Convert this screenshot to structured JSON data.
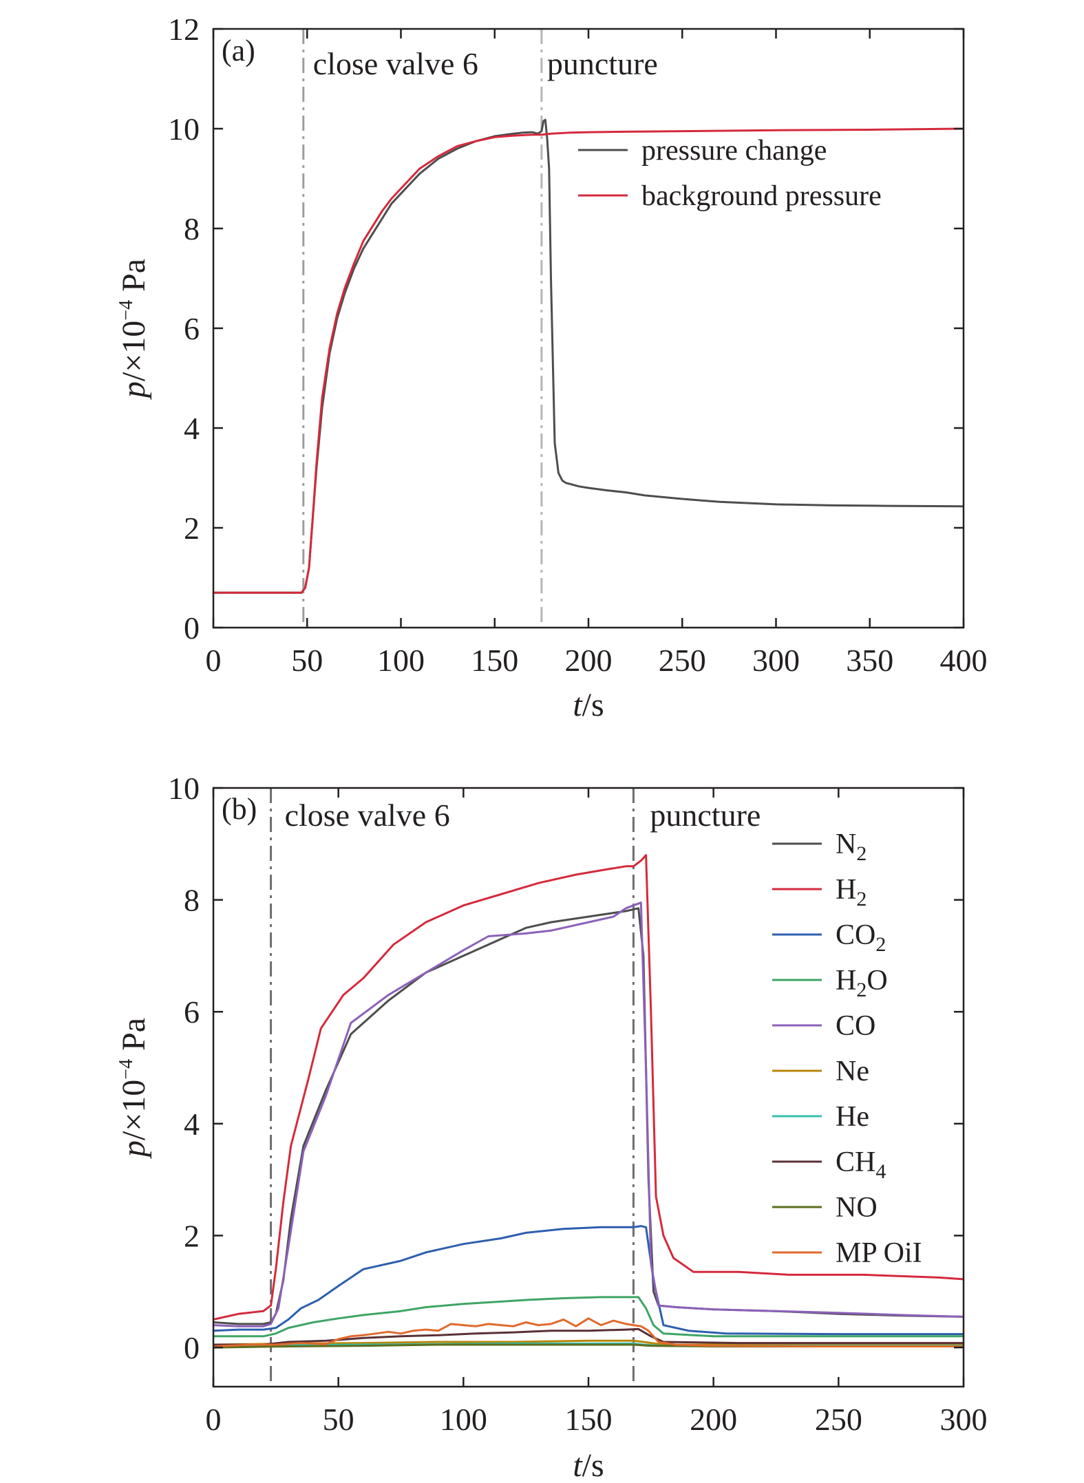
{
  "charts": [
    {
      "panel": "(a)",
      "chart_data": {
        "type": "line",
        "title": "",
        "xlabel": {
          "italic": "t",
          "unit": "/s"
        },
        "ylabel": {
          "italic": "p",
          "unit": "/×10",
          "exp": "−4",
          "suffix": " Pa"
        },
        "xlim": [
          0,
          400
        ],
        "ylim": [
          0,
          12
        ],
        "xticks": [
          0,
          50,
          100,
          150,
          200,
          250,
          300,
          350,
          400
        ],
        "yticks": [
          0,
          2,
          4,
          6,
          8,
          10,
          12
        ],
        "grid": false,
        "legend_position": "top-right",
        "vlines": [
          {
            "x": 48,
            "label": "close valve 6",
            "color": "#9d9d9d"
          },
          {
            "x": 175,
            "label": "puncture",
            "color": "#b5b5b5"
          }
        ],
        "series": [
          {
            "name": "pressure change",
            "color": "#4d4d4d",
            "x": [
              0,
              20,
              40,
              47,
              49,
              51,
              53,
              55,
              58,
              62,
              66,
              70,
              75,
              80,
              85,
              90,
              95,
              100,
              110,
              120,
              130,
              140,
              150,
              160,
              165,
              170,
              173,
              175,
              176,
              177,
              178,
              179,
              180,
              182,
              184,
              186,
              188,
              190,
              195,
              200,
              210,
              220,
              230,
              250,
              270,
              300,
              330,
              360,
              400
            ],
            "y": [
              0.7,
              0.7,
              0.7,
              0.7,
              0.8,
              1.2,
              2.2,
              3.2,
              4.4,
              5.5,
              6.2,
              6.7,
              7.2,
              7.6,
              7.9,
              8.2,
              8.5,
              8.7,
              9.1,
              9.4,
              9.6,
              9.75,
              9.85,
              9.9,
              9.92,
              9.93,
              9.9,
              9.95,
              10.15,
              10.18,
              9.8,
              9.2,
              7.0,
              3.7,
              3.1,
              2.95,
              2.9,
              2.88,
              2.83,
              2.8,
              2.75,
              2.71,
              2.65,
              2.58,
              2.52,
              2.47,
              2.45,
              2.44,
              2.43
            ]
          },
          {
            "name": "background pressure",
            "color": "#d42a3c",
            "x": [
              0,
              20,
              40,
              47,
              49,
              51,
              53,
              55,
              58,
              62,
              66,
              70,
              75,
              80,
              85,
              90,
              95,
              100,
              110,
              120,
              130,
              140,
              150,
              160,
              170,
              175,
              180,
              190,
              200,
              220,
              250,
              300,
              350,
              400
            ],
            "y": [
              0.7,
              0.7,
              0.7,
              0.7,
              0.8,
              1.2,
              2.2,
              3.3,
              4.6,
              5.6,
              6.3,
              6.8,
              7.3,
              7.75,
              8.05,
              8.35,
              8.6,
              8.8,
              9.2,
              9.45,
              9.65,
              9.75,
              9.83,
              9.86,
              9.88,
              9.88,
              9.9,
              9.92,
              9.93,
              9.94,
              9.95,
              9.97,
              9.98,
              10.0
            ]
          }
        ]
      }
    },
    {
      "panel": "(b)",
      "chart_data": {
        "type": "line",
        "title": "",
        "xlabel": {
          "italic": "t",
          "unit": "/s"
        },
        "ylabel": {
          "italic": "p",
          "unit": "/×10",
          "exp": "−4",
          "suffix": " Pa"
        },
        "xlim": [
          0,
          300
        ],
        "ylim": [
          -0.7,
          10
        ],
        "xticks": [
          0,
          50,
          100,
          150,
          200,
          250,
          300
        ],
        "yticks": [
          0,
          2,
          4,
          6,
          8,
          10
        ],
        "grid": false,
        "legend_position": "right",
        "vlines": [
          {
            "x": 23,
            "label": "close valve 6",
            "color": "#6d6d6d"
          },
          {
            "x": 168,
            "label": "puncture",
            "color": "#6d6d6d"
          }
        ],
        "series": [
          {
            "name": "N",
            "sub": "2",
            "color": "#4d4d4d",
            "x": [
              0,
              10,
              20,
              23,
              25,
              28,
              31,
              36,
              45,
              55,
              70,
              85,
              100,
              115,
              125,
              135,
              150,
              165,
              170,
              172,
              174,
              176,
              178,
              185,
              200,
              225,
              250,
              275,
              300
            ],
            "y": [
              0.45,
              0.42,
              0.42,
              0.45,
              0.6,
              1.2,
              2.3,
              3.6,
              4.6,
              5.6,
              6.2,
              6.7,
              7.0,
              7.3,
              7.5,
              7.6,
              7.7,
              7.8,
              7.85,
              7.0,
              3.0,
              1.0,
              0.75,
              0.72,
              0.68,
              0.65,
              0.6,
              0.57,
              0.55
            ]
          },
          {
            "name": "H",
            "sub": "2",
            "color": "#d42a3c",
            "x": [
              0,
              10,
              20,
              23,
              25,
              28,
              31,
              38,
              43,
              52,
              60,
              72,
              85,
              100,
              115,
              130,
              145,
              158,
              165,
              168,
              171,
              173,
              175,
              177,
              180,
              184,
              192,
              210,
              230,
              260,
              290,
              300
            ],
            "y": [
              0.5,
              0.6,
              0.65,
              0.75,
              1.4,
              2.6,
              3.6,
              4.8,
              5.7,
              6.3,
              6.6,
              7.2,
              7.6,
              7.9,
              8.1,
              8.3,
              8.45,
              8.55,
              8.6,
              8.6,
              8.7,
              8.8,
              6.0,
              2.7,
              2.0,
              1.6,
              1.35,
              1.35,
              1.3,
              1.3,
              1.25,
              1.22
            ]
          },
          {
            "name": "CO",
            "sub": "2",
            "color": "#2d5fae",
            "x": [
              0,
              10,
              20,
              25,
              30,
              35,
              42,
              50,
              60,
              75,
              85,
              100,
              115,
              125,
              140,
              155,
              165,
              168,
              171,
              173,
              176,
              180,
              190,
              205,
              250,
              300
            ],
            "y": [
              0.3,
              0.32,
              0.32,
              0.35,
              0.5,
              0.7,
              0.85,
              1.1,
              1.4,
              1.55,
              1.7,
              1.85,
              1.95,
              2.05,
              2.12,
              2.15,
              2.15,
              2.15,
              2.17,
              2.15,
              1.2,
              0.4,
              0.3,
              0.25,
              0.24,
              0.24
            ]
          },
          {
            "name": "H",
            "sub": "2",
            "tail": "O",
            "color": "#3ea565",
            "x": [
              0,
              10,
              20,
              25,
              30,
              40,
              50,
              60,
              75,
              85,
              100,
              115,
              125,
              140,
              155,
              165,
              170,
              173,
              176,
              180,
              200,
              250,
              300
            ],
            "y": [
              0.2,
              0.2,
              0.2,
              0.25,
              0.35,
              0.45,
              0.52,
              0.58,
              0.65,
              0.72,
              0.78,
              0.82,
              0.85,
              0.88,
              0.9,
              0.9,
              0.9,
              0.7,
              0.4,
              0.25,
              0.2,
              0.2,
              0.2
            ]
          },
          {
            "name": "CO",
            "sub": "",
            "color": "#8b61b8",
            "x": [
              0,
              10,
              20,
              23,
              26,
              30,
              36,
              45,
              55,
              70,
              85,
              100,
              110,
              125,
              135,
              150,
              160,
              165,
              168,
              171,
              173,
              175,
              178,
              185,
              200,
              225,
              250,
              275,
              300
            ],
            "y": [
              0.4,
              0.38,
              0.38,
              0.42,
              0.7,
              1.8,
              3.5,
              4.5,
              5.8,
              6.3,
              6.7,
              7.1,
              7.35,
              7.4,
              7.45,
              7.6,
              7.7,
              7.85,
              7.9,
              7.95,
              5.0,
              1.5,
              0.75,
              0.72,
              0.68,
              0.65,
              0.62,
              0.58,
              0.55
            ]
          },
          {
            "name": "Ne",
            "sub": "",
            "color": "#b8860b",
            "x": [
              0,
              30,
              60,
              90,
              120,
              150,
              168,
              172,
              180,
              220,
              260,
              300
            ],
            "y": [
              0.05,
              0.07,
              0.08,
              0.1,
              0.1,
              0.12,
              0.12,
              0.1,
              0.05,
              0.05,
              0.05,
              0.05
            ]
          },
          {
            "name": "He",
            "sub": "",
            "color": "#36bfb0",
            "x": [
              0,
              30,
              60,
              90,
              120,
              150,
              168,
              172,
              180,
              220,
              260,
              300
            ],
            "y": [
              0.02,
              0.04,
              0.05,
              0.06,
              0.07,
              0.07,
              0.07,
              0.05,
              0.03,
              0.03,
              0.03,
              0.03
            ]
          },
          {
            "name": "CH",
            "sub": "4",
            "color": "#5a3035",
            "x": [
              0,
              20,
              30,
              45,
              60,
              75,
              90,
              105,
              120,
              135,
              150,
              165,
              170,
              175,
              180,
              210,
              250,
              300
            ],
            "y": [
              0.05,
              0.05,
              0.1,
              0.12,
              0.17,
              0.2,
              0.22,
              0.25,
              0.27,
              0.3,
              0.3,
              0.32,
              0.33,
              0.2,
              0.1,
              0.08,
              0.08,
              0.08
            ]
          },
          {
            "name": "NO",
            "sub": "",
            "color": "#5b6e1e",
            "x": [
              0,
              30,
              60,
              90,
              120,
              150,
              168,
              175,
              200,
              250,
              300
            ],
            "y": [
              0.0,
              0.02,
              0.03,
              0.05,
              0.05,
              0.05,
              0.05,
              0.03,
              0.02,
              0.02,
              0.02
            ]
          },
          {
            "name": "MP OiI",
            "sub": "",
            "color": "#e06a2c",
            "x": [
              0,
              15,
              25,
              35,
              45,
              50,
              55,
              60,
              65,
              70,
              75,
              80,
              85,
              90,
              95,
              100,
              105,
              110,
              115,
              120,
              125,
              130,
              135,
              140,
              145,
              150,
              155,
              160,
              165,
              168,
              171,
              174,
              178,
              185,
              200,
              240,
              300
            ],
            "y": [
              0.02,
              0.05,
              0.05,
              0.08,
              0.06,
              0.15,
              0.2,
              0.22,
              0.25,
              0.28,
              0.25,
              0.3,
              0.32,
              0.3,
              0.42,
              0.4,
              0.38,
              0.42,
              0.4,
              0.38,
              0.45,
              0.4,
              0.42,
              0.5,
              0.38,
              0.52,
              0.4,
              0.48,
              0.42,
              0.4,
              0.38,
              0.3,
              0.1,
              0.05,
              0.03,
              0.02,
              0.02
            ]
          }
        ]
      }
    }
  ]
}
